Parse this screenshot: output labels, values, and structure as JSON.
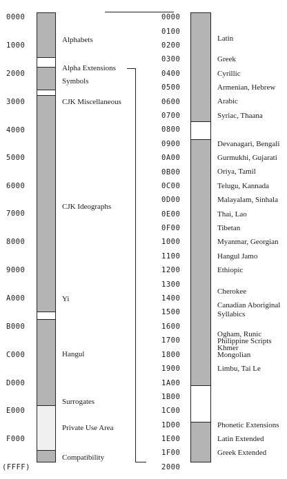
{
  "left_scale": {
    "ticks": [
      "0000",
      "1000",
      "2000",
      "3000",
      "4000",
      "5000",
      "6000",
      "7000",
      "8000",
      "9000",
      "A000",
      "B000",
      "C000",
      "D000",
      "E000",
      "F000",
      "(FFFF)"
    ],
    "labels": [
      "Alphabets",
      "Alpha Extensions",
      "Symbols",
      "CJK Miscellaneous",
      "CJK Ideographs",
      "Yi",
      "Hangul",
      "Surrogates",
      "Private Use Area",
      "Compatibility"
    ]
  },
  "right_scale": {
    "ticks": [
      "0000",
      "0100",
      "0200",
      "0300",
      "0400",
      "0500",
      "0600",
      "0700",
      "0800",
      "0900",
      "0A00",
      "0B00",
      "0C00",
      "0D00",
      "0E00",
      "0F00",
      "1000",
      "1100",
      "1200",
      "1300",
      "1400",
      "1500",
      "1600",
      "1700",
      "1800",
      "1900",
      "1A00",
      "1B00",
      "1C00",
      "1D00",
      "1E00",
      "1F00",
      "2000"
    ],
    "labels": {
      "latin": "Latin",
      "greek": "Greek",
      "cyrillic": "Cyrillic",
      "armenian": "Armenian, Hebrew",
      "arabic": "Arabic",
      "syriac": "Syriac, Thaana",
      "devanagari": "Devanagari, Bengali",
      "gurmukhi": "Gurmukhi, Gujarati",
      "oriya": "Oriya, Tamil",
      "telugu": "Telugu, Kannada",
      "malayalam": "Malayalam, Sinhala",
      "thai": "Thai, Lao",
      "tibetan": "Tibetan",
      "myanmar": "Myanmar, Georgian",
      "hangul_jamo": "Hangul Jamo",
      "ethiopic": "Ethiopic",
      "cherokee": "Cherokee",
      "canadian_1": "Canadian Aboriginal",
      "canadian_2": "Syllabics",
      "ogham": "Ogham, Runic",
      "philippine": "Philippine Scripts",
      "khmer": "Khmer",
      "mongolian": "Mongolian",
      "limbu": "Limbu, Tai Le",
      "phonetic": "Phonetic Extensions",
      "latin_ext": "Latin Extended",
      "greek_ext": "Greek Extended"
    }
  },
  "colors": {
    "filled": "#b4b4b4",
    "private_use": "#f0f0f0",
    "unassigned": "#ffffff",
    "line": "#222222"
  }
}
